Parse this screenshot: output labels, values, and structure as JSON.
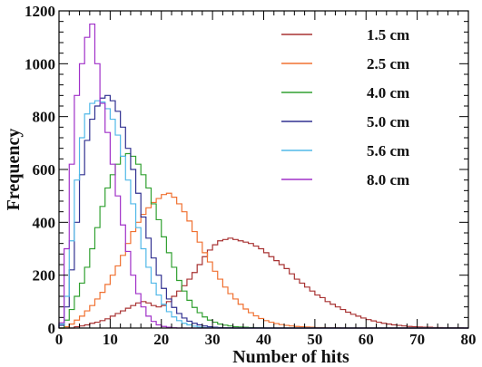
{
  "chart_data": {
    "type": "line",
    "title": "",
    "xlabel": "Number of hits",
    "ylabel": "Frequency",
    "xlim": [
      0,
      80
    ],
    "ylim": [
      0,
      1200
    ],
    "xticks": [
      0,
      10,
      20,
      30,
      40,
      50,
      60,
      70,
      80
    ],
    "yticks": [
      0,
      200,
      400,
      600,
      800,
      1000,
      1200
    ],
    "bin_width": 1,
    "grid": false,
    "legend_position": "top-right",
    "series": [
      {
        "name": "1.5 cm",
        "color": "#a83232",
        "values": [
          0,
          0,
          0,
          5,
          8,
          12,
          18,
          22,
          28,
          35,
          45,
          55,
          65,
          75,
          85,
          95,
          100,
          95,
          85,
          80,
          85,
          100,
          120,
          140,
          160,
          185,
          210,
          240,
          270,
          295,
          315,
          330,
          335,
          340,
          335,
          330,
          325,
          320,
          310,
          300,
          285,
          270,
          255,
          240,
          225,
          205,
          185,
          170,
          155,
          140,
          125,
          115,
          100,
          90,
          80,
          70,
          60,
          52,
          45,
          38,
          32,
          27,
          22,
          18,
          15,
          12,
          10,
          8,
          6,
          5,
          4,
          3,
          3,
          2,
          2,
          1,
          1,
          1,
          1,
          0
        ]
      },
      {
        "name": "2.5 cm",
        "color": "#f07030",
        "values": [
          0,
          5,
          15,
          30,
          45,
          65,
          85,
          110,
          135,
          165,
          200,
          235,
          275,
          320,
          365,
          400,
          430,
          455,
          475,
          490,
          505,
          510,
          495,
          470,
          440,
          405,
          365,
          325,
          285,
          250,
          215,
          185,
          155,
          130,
          110,
          90,
          72,
          58,
          46,
          36,
          28,
          22,
          17,
          13,
          10,
          8,
          6,
          5,
          4,
          3,
          2,
          2,
          1,
          1,
          1,
          0,
          0,
          0,
          0,
          0,
          0,
          0,
          0,
          0,
          0,
          0,
          0,
          0,
          0,
          0,
          0,
          0,
          0,
          0,
          0,
          0,
          0,
          0,
          0,
          0
        ]
      },
      {
        "name": "4.0 cm",
        "color": "#30a030",
        "values": [
          0,
          30,
          70,
          120,
          170,
          230,
          300,
          380,
          460,
          530,
          580,
          620,
          650,
          660,
          650,
          620,
          580,
          530,
          470,
          410,
          345,
          285,
          230,
          180,
          140,
          105,
          78,
          58,
          42,
          30,
          22,
          15,
          11,
          8,
          5,
          4,
          3,
          2,
          1,
          1,
          0,
          0,
          0,
          0,
          0,
          0,
          0,
          0,
          0,
          0,
          0,
          0,
          0,
          0,
          0,
          0,
          0,
          0,
          0,
          0,
          0,
          0,
          0,
          0,
          0,
          0,
          0,
          0,
          0,
          0,
          0,
          0,
          0,
          0,
          0,
          0,
          0,
          0,
          0,
          0
        ]
      },
      {
        "name": "5.0 cm",
        "color": "#303090",
        "values": [
          10,
          80,
          220,
          400,
          580,
          710,
          790,
          840,
          870,
          880,
          860,
          820,
          760,
          680,
          600,
          510,
          420,
          340,
          265,
          200,
          150,
          110,
          78,
          55,
          38,
          26,
          18,
          12,
          8,
          5,
          3,
          2,
          1,
          1,
          0,
          0,
          0,
          0,
          0,
          0,
          0,
          0,
          0,
          0,
          0,
          0,
          0,
          0,
          0,
          0,
          0,
          0,
          0,
          0,
          0,
          0,
          0,
          0,
          0,
          0,
          0,
          0,
          0,
          0,
          0,
          0,
          0,
          0,
          0,
          0,
          0,
          0,
          0,
          0,
          0,
          0,
          0,
          0,
          0,
          0
        ]
      },
      {
        "name": "5.6 cm",
        "color": "#50b8e8",
        "values": [
          15,
          120,
          330,
          560,
          720,
          810,
          850,
          860,
          855,
          830,
          790,
          730,
          650,
          560,
          470,
          380,
          300,
          230,
          170,
          125,
          90,
          62,
          42,
          28,
          18,
          12,
          7,
          4,
          2,
          1,
          1,
          0,
          0,
          0,
          0,
          0,
          0,
          0,
          0,
          0,
          0,
          0,
          0,
          0,
          0,
          0,
          0,
          0,
          0,
          0,
          0,
          0,
          0,
          0,
          0,
          0,
          0,
          0,
          0,
          0,
          0,
          0,
          0,
          0,
          0,
          0,
          0,
          0,
          0,
          0,
          0,
          0,
          0,
          0,
          0,
          0,
          0,
          0,
          0,
          0
        ]
      },
      {
        "name": "8.0 cm",
        "color": "#a030c8",
        "values": [
          20,
          300,
          620,
          880,
          1000,
          1100,
          1150,
          1000,
          850,
          740,
          620,
          500,
          390,
          290,
          200,
          130,
          80,
          45,
          25,
          12,
          6,
          3,
          1,
          0,
          0,
          0,
          0,
          0,
          0,
          0,
          0,
          0,
          0,
          0,
          0,
          0,
          0,
          0,
          0,
          0,
          0,
          0,
          0,
          0,
          0,
          0,
          0,
          0,
          0,
          0,
          0,
          0,
          0,
          0,
          0,
          0,
          0,
          0,
          0,
          0,
          0,
          0,
          0,
          0,
          0,
          0,
          0,
          0,
          0,
          0,
          0,
          0,
          0,
          0,
          0,
          0,
          0,
          0,
          0,
          0
        ]
      }
    ]
  }
}
